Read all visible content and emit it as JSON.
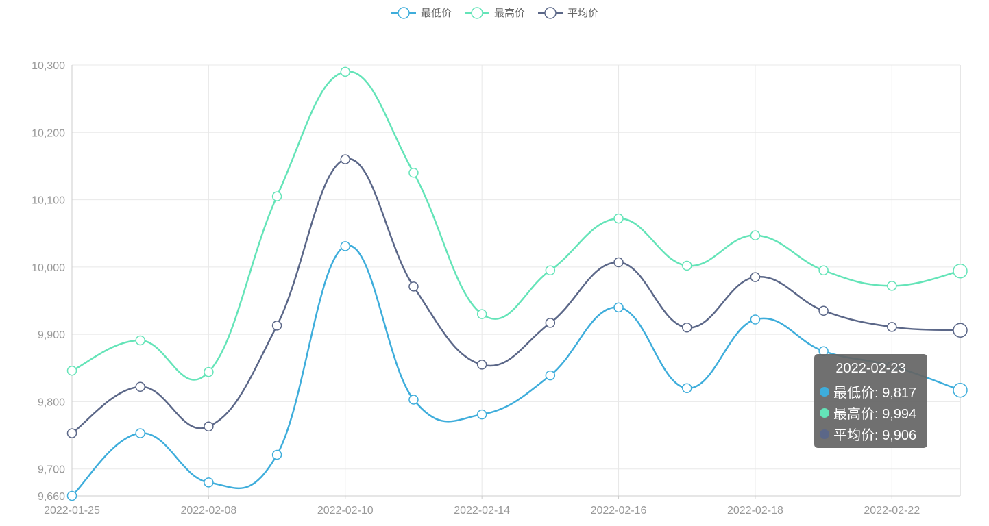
{
  "colors": {
    "min": "#3eaddb",
    "max": "#64e4b8",
    "avg": "#5b6788",
    "grid": "#e8e8e8",
    "axis": "#cccccc",
    "text": "#999999"
  },
  "legend": [
    {
      "key": "min",
      "label": "最低价"
    },
    {
      "key": "max",
      "label": "最高价"
    },
    {
      "key": "avg",
      "label": "平均价"
    }
  ],
  "tooltip": {
    "title": "2022-02-23",
    "rows": [
      {
        "key": "min",
        "text": "最低价: 9,817"
      },
      {
        "key": "max",
        "text": "最高价: 9,994"
      },
      {
        "key": "avg",
        "text": "平均价: 9,906"
      }
    ]
  },
  "chart_data": {
    "type": "line",
    "smooth": true,
    "x": [
      "2022-01-25",
      "",
      "2022-02-08",
      "",
      "2022-02-10",
      "",
      "2022-02-14",
      "",
      "2022-02-16",
      "",
      "2022-02-18",
      "",
      "2022-02-22",
      "2022-02-23"
    ],
    "x_tick_labels": [
      "2022-01-25",
      "2022-02-08",
      "2022-02-10",
      "2022-02-14",
      "2022-02-16",
      "2022-02-18",
      "2022-02-22"
    ],
    "y_ticks": [
      9660,
      9700,
      9800,
      9900,
      10000,
      10100,
      10200,
      10300
    ],
    "y_tick_labels": [
      "9,660",
      "9,700",
      "9,800",
      "9,900",
      "10,000",
      "10,100",
      "10,200",
      "10,300"
    ],
    "ylim": [
      9660,
      10300
    ],
    "grid": true,
    "legend_position": "top-center",
    "series": [
      {
        "key": "min",
        "name": "最低价",
        "values": [
          9660,
          9753,
          9680,
          9721,
          10031,
          9803,
          9781,
          9839,
          9940,
          9820,
          9922,
          9875,
          9853,
          9817
        ]
      },
      {
        "key": "max",
        "name": "最高价",
        "values": [
          9846,
          9891,
          9844,
          10105,
          10290,
          10140,
          9930,
          9995,
          10072,
          10002,
          10047,
          9995,
          9972,
          9994
        ]
      },
      {
        "key": "avg",
        "name": "平均价",
        "values": [
          9753,
          9822,
          9763,
          9913,
          10160,
          9971,
          9855,
          9917,
          10007,
          9910,
          9985,
          9935,
          9911,
          9906
        ]
      }
    ]
  }
}
